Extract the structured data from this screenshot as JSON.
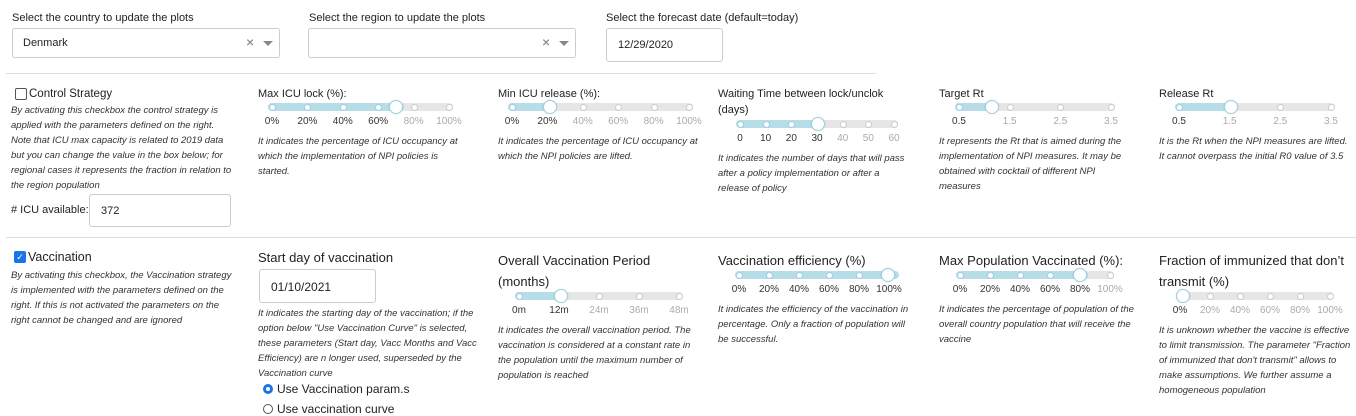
{
  "top": {
    "country_label": "Select the country to update the plots",
    "country_value": "Denmark",
    "region_label": "Select the region to update the plots",
    "region_value": "",
    "date_label": "Select the forecast date (default=today)",
    "date_value": "12/29/2020",
    "clear_icon": "×"
  },
  "control": {
    "checkbox_label": "Control Strategy",
    "checked": false,
    "help": "By activating this checkbox the control strategy is applied with the parameters defined on the right. Note that ICU max capacity is related to 2019 data but you can change the value in the box below; for regional cases it represents the fraction in relation to the region population",
    "icu_label": "# ICU available:",
    "icu_value": "372"
  },
  "sliders_row1": [
    {
      "label": "Max ICU lock (%):",
      "ticks": [
        "0%",
        "20%",
        "40%",
        "60%",
        "80%",
        "100%"
      ],
      "value_fraction": 0.7,
      "active_ticks": 4,
      "help": "It indicates the percentage of ICU occupancy at which the implementation of NPI policies is started."
    },
    {
      "label": "Min ICU release (%):",
      "ticks": [
        "0%",
        "20%",
        "40%",
        "60%",
        "80%",
        "100%"
      ],
      "value_fraction": 0.2,
      "active_ticks": 2,
      "help": "It indicates the percentage of ICU occupancy at which the NPI policies are lifted."
    },
    {
      "label": "Waiting Time between lock/unclok (days)",
      "ticks": [
        "0",
        "10",
        "20",
        "30",
        "40",
        "50",
        "60"
      ],
      "value_fraction": 0.5,
      "active_ticks": 4,
      "help": "It indicates the number of days that will pass after a policy implementation or after a release of policy"
    },
    {
      "label": "Target Rt",
      "ticks": [
        "0.5",
        "1.5",
        "2.5",
        "3.5"
      ],
      "value_fraction": 0.2,
      "active_ticks": 2,
      "help": "It represents the Rt that is aimed during the implementation of NPI measures. It may be obtained with cocktail of different NPI measures"
    },
    {
      "label": "Release Rt",
      "ticks": [
        "0.5",
        "1.5",
        "2.5",
        "3.5"
      ],
      "value_fraction": 0.33,
      "active_ticks": 2,
      "help": "It is the Rt when the NPI measures are lifted. It cannot overpass the initial R0 value of 3.5"
    }
  ],
  "vaccination": {
    "checkbox_label": "Vaccination",
    "checked": true,
    "help": "By activating this checkbox, the Vaccination strategy is implemented with the parameters defined on the right. If this is not activated the parameters on the right cannot be changed and are ignored",
    "start_label": "Start day of vaccination",
    "start_value": "01/10/2021",
    "start_help": "It indicates the starting day of the vaccination; if the option below \"Use Vaccination Curve\" is selected, these parameters (Start day, Vacc Months and Vacc Efficiency) are n longer used, superseded by the Vaccination curve",
    "radio1": "Use Vaccination param.s",
    "radio2": "Use vaccination curve"
  },
  "sliders_row2": [
    {
      "label": "Overall Vaccination Period (months)",
      "ticks": [
        "0m",
        "12m",
        "24m",
        "36m",
        "48m"
      ],
      "value_fraction": 0.25,
      "active_ticks": 2,
      "help": "It indicates the overall vaccination period. The vaccination is considered at a constant rate in the population until the maximum number of population is reached"
    },
    {
      "label": "Vaccination efficiency (%)",
      "ticks": [
        "0%",
        "20%",
        "40%",
        "60%",
        "80%",
        "100%"
      ],
      "value_fraction": 1.0,
      "active_ticks": 5,
      "help": "It indicates the efficiency of the vaccination in percentage. Only a fraction of population will be successful."
    },
    {
      "label": "Max Population Vaccinated (%):",
      "ticks": [
        "0%",
        "20%",
        "40%",
        "60%",
        "80%",
        "100%"
      ],
      "value_fraction": 0.8,
      "active_ticks": 5,
      "help": "It indicates the percentage of population of the overall country population that will receive the vaccine"
    },
    {
      "label": "Fraction of immunized that don’t transmit (%)",
      "ticks": [
        "0%",
        "20%",
        "40%",
        "60%",
        "80%",
        "100%"
      ],
      "value_fraction": 0.0,
      "active_ticks": 1,
      "help": "It is unknown whether the vaccine is effective to limit transmission. The parameter \"Fraction of immunized that don't transmit\" allows to make assumptions. We further assume a homogeneous population"
    }
  ]
}
